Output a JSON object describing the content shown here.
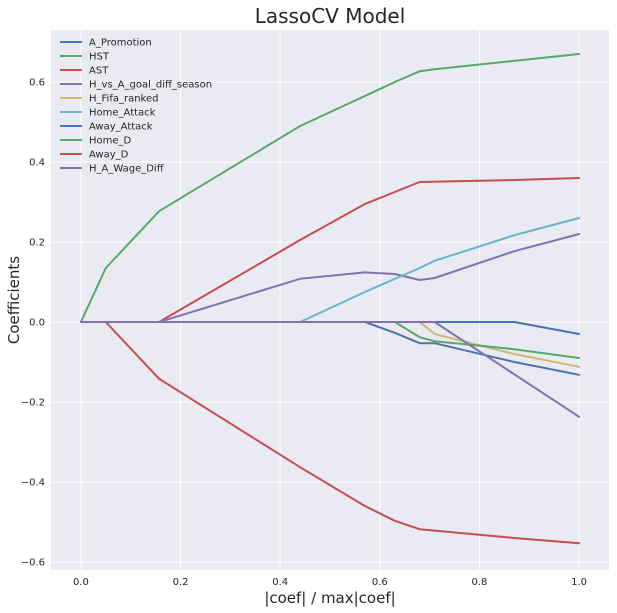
{
  "chart_data": {
    "type": "line",
    "title": "LassoCV Model",
    "xlabel": "|coef| / max|coef|",
    "ylabel": "Coefficients",
    "xlim": [
      -0.06,
      1.06
    ],
    "ylim": [
      -0.62,
      0.73
    ],
    "xticks": [
      "0.0",
      "0.2",
      "0.4",
      "0.6",
      "0.8",
      "1.0"
    ],
    "xtick_values": [
      0.0,
      0.2,
      0.4,
      0.6,
      0.8,
      1.0
    ],
    "yticks": [
      "−0.6",
      "−0.4",
      "−0.2",
      "0.0",
      "0.2",
      "0.4",
      "0.6"
    ],
    "ytick_values": [
      -0.6,
      -0.4,
      -0.2,
      0.0,
      0.2,
      0.4,
      0.6
    ],
    "grid": true,
    "legend_position": "top-left",
    "background": "#eaeaf2",
    "series": [
      {
        "name": "A_Promotion",
        "color": "#4c72b0",
        "points": [
          [
            0,
            0
          ],
          [
            0.57,
            0
          ],
          [
            0.87,
            0
          ],
          [
            1.0,
            -0.03
          ]
        ]
      },
      {
        "name": "HST",
        "color": "#55a868",
        "points": [
          [
            0,
            0
          ],
          [
            0.05,
            0.135
          ],
          [
            0.157,
            0.277
          ],
          [
            0.44,
            0.49
          ],
          [
            0.57,
            0.565
          ],
          [
            0.63,
            0.6
          ],
          [
            0.68,
            0.627
          ],
          [
            0.71,
            0.632
          ],
          [
            1.0,
            0.67
          ]
        ]
      },
      {
        "name": "AST",
        "color": "#c44e52",
        "points": [
          [
            0,
            0
          ],
          [
            0.157,
            0
          ],
          [
            0.44,
            0.205
          ],
          [
            0.57,
            0.295
          ],
          [
            0.63,
            0.325
          ],
          [
            0.68,
            0.35
          ],
          [
            0.87,
            0.355
          ],
          [
            1.0,
            0.36
          ]
        ]
      },
      {
        "name": "H_vs_A_goal_diff_season",
        "color": "#8172b2",
        "points": [
          [
            0,
            0
          ],
          [
            0.157,
            0
          ],
          [
            0.44,
            0.108
          ],
          [
            0.57,
            0.124
          ],
          [
            0.63,
            0.12
          ],
          [
            0.68,
            0.105
          ],
          [
            0.71,
            0.11
          ],
          [
            0.87,
            0.177
          ],
          [
            1.0,
            0.22
          ]
        ]
      },
      {
        "name": "H_Fifa_ranked",
        "color": "#ccb974",
        "points": [
          [
            0,
            0
          ],
          [
            0.68,
            0
          ],
          [
            0.71,
            -0.03
          ],
          [
            0.87,
            -0.08
          ],
          [
            1.0,
            -0.112
          ]
        ]
      },
      {
        "name": "Home_Attack",
        "color": "#64b5cd",
        "points": [
          [
            0,
            0
          ],
          [
            0.44,
            0
          ],
          [
            0.57,
            0.075
          ],
          [
            0.68,
            0.135
          ],
          [
            0.71,
            0.153
          ],
          [
            0.87,
            0.217
          ],
          [
            1.0,
            0.26
          ]
        ]
      },
      {
        "name": "Away_Attack",
        "color": "#4c72b0",
        "points": [
          [
            0,
            0
          ],
          [
            0.57,
            0
          ],
          [
            0.63,
            -0.027
          ],
          [
            0.68,
            -0.053
          ],
          [
            0.71,
            -0.053
          ],
          [
            0.87,
            -0.1
          ],
          [
            1.0,
            -0.132
          ]
        ]
      },
      {
        "name": "Home_D",
        "color": "#55a868",
        "points": [
          [
            0,
            0
          ],
          [
            0.63,
            0
          ],
          [
            0.68,
            -0.038
          ],
          [
            0.71,
            -0.048
          ],
          [
            0.87,
            -0.068
          ],
          [
            1.0,
            -0.09
          ]
        ]
      },
      {
        "name": "Away_D",
        "color": "#c44e52",
        "points": [
          [
            0,
            0
          ],
          [
            0.05,
            0
          ],
          [
            0.157,
            -0.142
          ],
          [
            0.44,
            -0.363
          ],
          [
            0.57,
            -0.46
          ],
          [
            0.63,
            -0.497
          ],
          [
            0.68,
            -0.518
          ],
          [
            0.87,
            -0.54
          ],
          [
            1.0,
            -0.553
          ]
        ]
      },
      {
        "name": "H_A_Wage_Diff",
        "color": "#8172b2",
        "points": [
          [
            0,
            0
          ],
          [
            0.71,
            0
          ],
          [
            1.0,
            -0.237
          ]
        ]
      }
    ]
  }
}
